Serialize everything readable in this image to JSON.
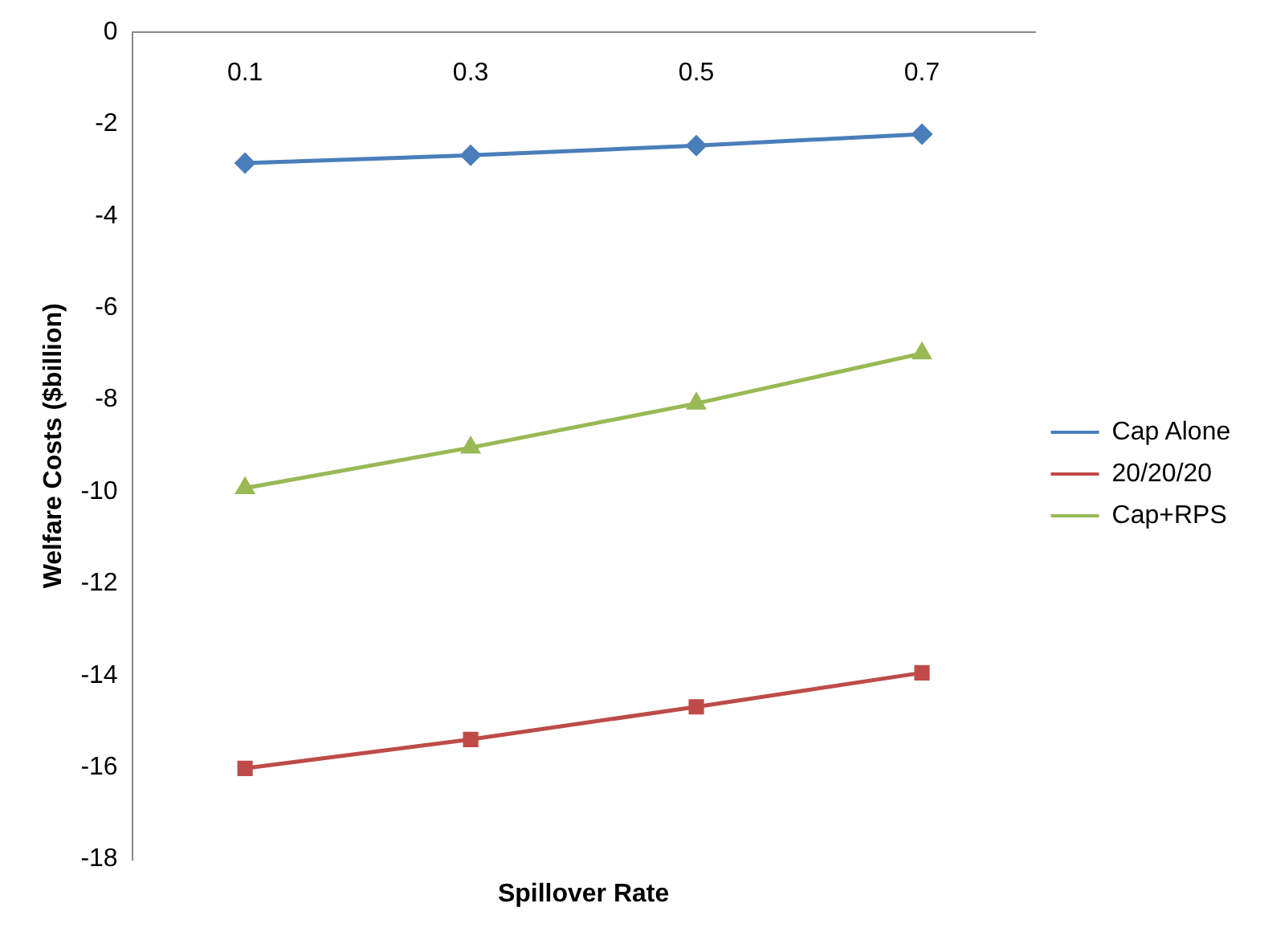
{
  "chart_data": {
    "type": "line",
    "xlabel": "Spillover Rate",
    "ylabel": "Welfare Costs ($billion)",
    "categories": [
      "0.1",
      "0.3",
      "0.5",
      "0.7"
    ],
    "series": [
      {
        "name": "Cap Alone",
        "color": "#4a7ebb",
        "marker": "diamond",
        "values": [
          -2.85,
          -2.68,
          -2.47,
          -2.22
        ]
      },
      {
        "name": "20/20/20",
        "color": "#be4b48",
        "marker": "square",
        "values": [
          -16.02,
          -15.39,
          -14.68,
          -13.94
        ]
      },
      {
        "name": "Cap+RPS",
        "color": "#98b954",
        "marker": "triangle",
        "values": [
          -9.92,
          -9.04,
          -8.08,
          -6.99
        ]
      }
    ],
    "ylim": [
      -18,
      0
    ],
    "yticks": [
      -18,
      -16,
      -14,
      -12,
      -10,
      -8,
      -6,
      -4,
      -2,
      0
    ],
    "grid": false,
    "legend": "right"
  }
}
